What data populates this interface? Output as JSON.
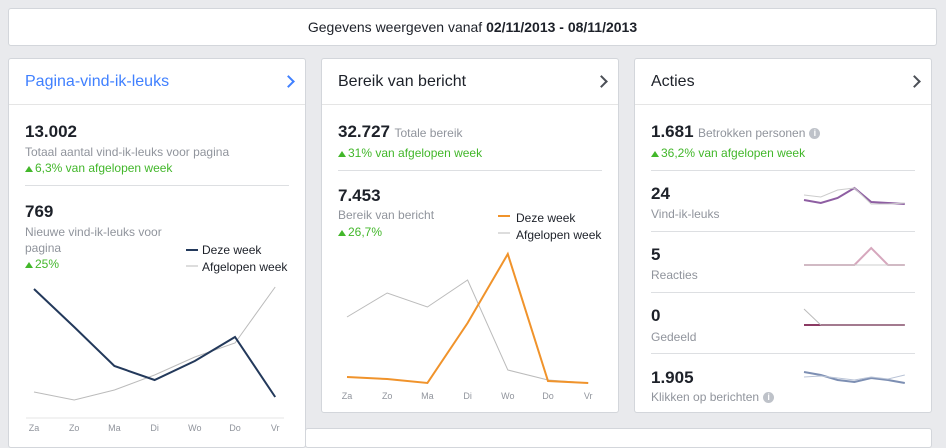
{
  "header": {
    "prefix": "Gegevens weergeven vanaf",
    "range": "02/11/2013 - 08/11/2013"
  },
  "panels": [
    {
      "title": "Pagina-vind-ik-leuks",
      "total": {
        "value": "13.002",
        "label": "Totaal aantal vind-ik-leuks voor pagina",
        "change": "6,3% van afgelopen week"
      },
      "sub": {
        "value": "769",
        "label": "Nieuwe vind-ik-leuks voor pagina",
        "change": "25%"
      },
      "chart": {
        "days": [
          "Za",
          "Zo",
          "Ma",
          "Di",
          "Wo",
          "Do",
          "Vr"
        ],
        "series": [
          {
            "name": "Deze week",
            "color": "#23395b",
            "values": [
              121,
              83,
              44,
              30,
              49,
              73,
              13
            ]
          },
          {
            "name": "Afgelopen week",
            "color": "#bbbbbb",
            "values": [
              18,
              10,
              20,
              35,
              53,
              67,
              123
            ]
          }
        ]
      }
    },
    {
      "title": "Bereik van bericht",
      "total": {
        "value": "32.727",
        "label": "Totale bereik",
        "change": "31% van afgelopen week"
      },
      "sub": {
        "value": "7.453",
        "label": "Bereik van bericht",
        "change": "26,7%"
      },
      "chart": {
        "days": [
          "Za",
          "Zo",
          "Ma",
          "Di",
          "Wo",
          "Do",
          "Vr"
        ],
        "series": [
          {
            "name": "Deze week",
            "color": "#f0932b",
            "values": [
              8,
              6,
              2,
              62,
              131,
              4,
              2
            ]
          },
          {
            "name": "Afgelopen week",
            "color": "#bbbbbb",
            "values": [
              68,
              92,
              78,
              105,
              15,
              5,
              2
            ]
          }
        ]
      }
    },
    {
      "title": "Acties",
      "total": {
        "value": "1.681",
        "label": "Betrokken personen",
        "change": "36,2% van afgelopen week"
      },
      "rows": [
        {
          "value": "24",
          "label": "Vind-ik-leuks",
          "spark": {
            "series": [
              {
                "color": "#cccccc",
                "values": [
                  11,
                  9,
                  16,
                  18,
                  2,
                  2,
                  3
                ]
              },
              {
                "color": "#8e5ea2",
                "values": [
                  6,
                  3,
                  8,
                  18,
                  4,
                  3,
                  2
                ]
              }
            ]
          }
        },
        {
          "value": "5",
          "label": "Reacties",
          "spark": {
            "series": [
              {
                "color": "#cccccc",
                "values": [
                  0,
                  0,
                  0,
                  0,
                  0,
                  0,
                  0
                ]
              },
              {
                "color": "#d6a7bd",
                "values": [
                  0,
                  0,
                  0,
                  0,
                  17,
                  0,
                  0
                ]
              }
            ]
          }
        },
        {
          "value": "0",
          "label": "Gedeeld",
          "spark": {
            "series": [
              {
                "color": "#bbbbbb",
                "values": [
                  16,
                  0,
                  0,
                  0,
                  0,
                  0,
                  0
                ]
              },
              {
                "color": "#8b3a63",
                "values": [
                  0,
                  0,
                  0,
                  0,
                  0,
                  0,
                  0
                ]
              }
            ]
          }
        },
        {
          "value": "1.905",
          "label": "Klikken op berichten",
          "spark": {
            "series": [
              {
                "color": "#b9c3d6",
                "values": [
                  8,
                  9,
                  7,
                  5,
                  8,
                  6,
                  10
                ]
              },
              {
                "color": "#7d8fb3",
                "values": [
                  13,
                  10,
                  5,
                  3,
                  7,
                  5,
                  2
                ]
              }
            ]
          }
        }
      ]
    }
  ]
}
